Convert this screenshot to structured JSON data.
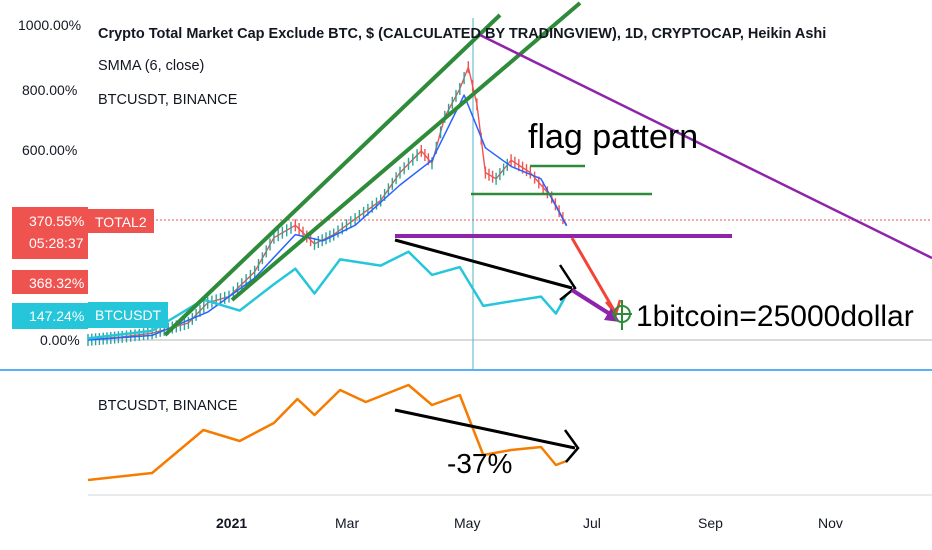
{
  "legend": {
    "title": "Crypto Total Market Cap Exclude BTC, $ (CALCULATED BY TRADINGVIEW), 1D, CRYPTOCAP, Heikin Ashi",
    "line2": "SMMA (6, close)",
    "line3": "BTCUSDT, BINANCE"
  },
  "lower_pane": {
    "legend": "BTCUSDT, BINANCE"
  },
  "badges": {
    "total2_pct": "370.55%",
    "total2_name": "TOTAL2",
    "countdown": "05:28:37",
    "smma_pct": "368.32%",
    "btc_pct": "147.24%",
    "btc_name": "BTCUSDT"
  },
  "annotations": {
    "flag": "flag pattern",
    "target": "1bitcoin=25000dollar",
    "drop": "-37%"
  },
  "colors": {
    "total2": "#ef5350",
    "smma": "#2962ff",
    "btc_overlay": "#26c6da",
    "btc_lower": "#f57c00",
    "trendline_green": "#2e8b3a",
    "trendline_purple": "#8e24aa",
    "arrow_red": "#f44336",
    "badge_red": "#ef5350",
    "badge_cyan": "#26c6da"
  },
  "chart_data": {
    "type": "line",
    "y_axis_unit": "%",
    "y_ticks": [
      "1000.00%",
      "800.00%",
      "600.00%",
      "0.00%"
    ],
    "ylim": [
      -10,
      1040
    ],
    "x_ticks": [
      "2021",
      "Mar",
      "May",
      "Jul",
      "Sep",
      "Nov"
    ],
    "x_range": [
      "2020-11-15",
      "2021-12-15"
    ],
    "series": [
      {
        "name": "TOTAL2",
        "style": "heikin-ashi",
        "points": [
          [
            "2020-11-15",
            0
          ],
          [
            "2020-12-01",
            10
          ],
          [
            "2020-12-15",
            22
          ],
          [
            "2021-01-01",
            55
          ],
          [
            "2021-01-10",
            120
          ],
          [
            "2021-01-20",
            140
          ],
          [
            "2021-02-01",
            220
          ],
          [
            "2021-02-10",
            330
          ],
          [
            "2021-02-20",
            370
          ],
          [
            "2021-03-01",
            310
          ],
          [
            "2021-03-10",
            340
          ],
          [
            "2021-03-20",
            390
          ],
          [
            "2021-04-01",
            450
          ],
          [
            "2021-04-10",
            540
          ],
          [
            "2021-04-20",
            610
          ],
          [
            "2021-04-25",
            570
          ],
          [
            "2021-05-01",
            720
          ],
          [
            "2021-05-08",
            810
          ],
          [
            "2021-05-12",
            880
          ],
          [
            "2021-05-16",
            760
          ],
          [
            "2021-05-20",
            540
          ],
          [
            "2021-05-25",
            520
          ],
          [
            "2021-06-01",
            580
          ],
          [
            "2021-06-10",
            540
          ],
          [
            "2021-06-20",
            460
          ],
          [
            "2021-06-27",
            371
          ]
        ]
      },
      {
        "name": "SMMA (6, close)",
        "points": [
          [
            "2020-11-15",
            0
          ],
          [
            "2020-12-15",
            15
          ],
          [
            "2021-01-10",
            90
          ],
          [
            "2021-02-01",
            200
          ],
          [
            "2021-02-20",
            340
          ],
          [
            "2021-03-05",
            320
          ],
          [
            "2021-03-20",
            370
          ],
          [
            "2021-04-10",
            500
          ],
          [
            "2021-04-25",
            580
          ],
          [
            "2021-05-10",
            790
          ],
          [
            "2021-05-20",
            620
          ],
          [
            "2021-06-01",
            560
          ],
          [
            "2021-06-15",
            520
          ],
          [
            "2021-06-27",
            368
          ]
        ]
      },
      {
        "name": "BTCUSDT, BINANCE",
        "points": [
          [
            "2020-11-15",
            5
          ],
          [
            "2020-12-15",
            30
          ],
          [
            "2021-01-08",
            130
          ],
          [
            "2021-01-25",
            95
          ],
          [
            "2021-02-10",
            180
          ],
          [
            "2021-02-20",
            230
          ],
          [
            "2021-03-01",
            150
          ],
          [
            "2021-03-13",
            260
          ],
          [
            "2021-04-01",
            240
          ],
          [
            "2021-04-14",
            285
          ],
          [
            "2021-04-25",
            210
          ],
          [
            "2021-05-08",
            235
          ],
          [
            "2021-05-19",
            110
          ],
          [
            "2021-06-01",
            125
          ],
          [
            "2021-06-15",
            140
          ],
          [
            "2021-06-22",
            85
          ],
          [
            "2021-06-27",
            147
          ]
        ]
      }
    ],
    "lower_pane": {
      "name": "BTCUSDT, BINANCE",
      "points": [
        [
          "2020-11-15",
          0.05
        ],
        [
          "2020-12-15",
          0.12
        ],
        [
          "2021-01-08",
          0.55
        ],
        [
          "2021-01-25",
          0.44
        ],
        [
          "2021-02-10",
          0.62
        ],
        [
          "2021-02-21",
          0.86
        ],
        [
          "2021-03-01",
          0.7
        ],
        [
          "2021-03-13",
          0.95
        ],
        [
          "2021-03-25",
          0.83
        ],
        [
          "2021-04-14",
          1.0
        ],
        [
          "2021-04-25",
          0.8
        ],
        [
          "2021-05-08",
          0.9
        ],
        [
          "2021-05-19",
          0.3
        ],
        [
          "2021-06-01",
          0.35
        ],
        [
          "2021-06-15",
          0.38
        ],
        [
          "2021-06-22",
          0.2
        ],
        [
          "2021-06-27",
          0.24
        ]
      ]
    }
  }
}
